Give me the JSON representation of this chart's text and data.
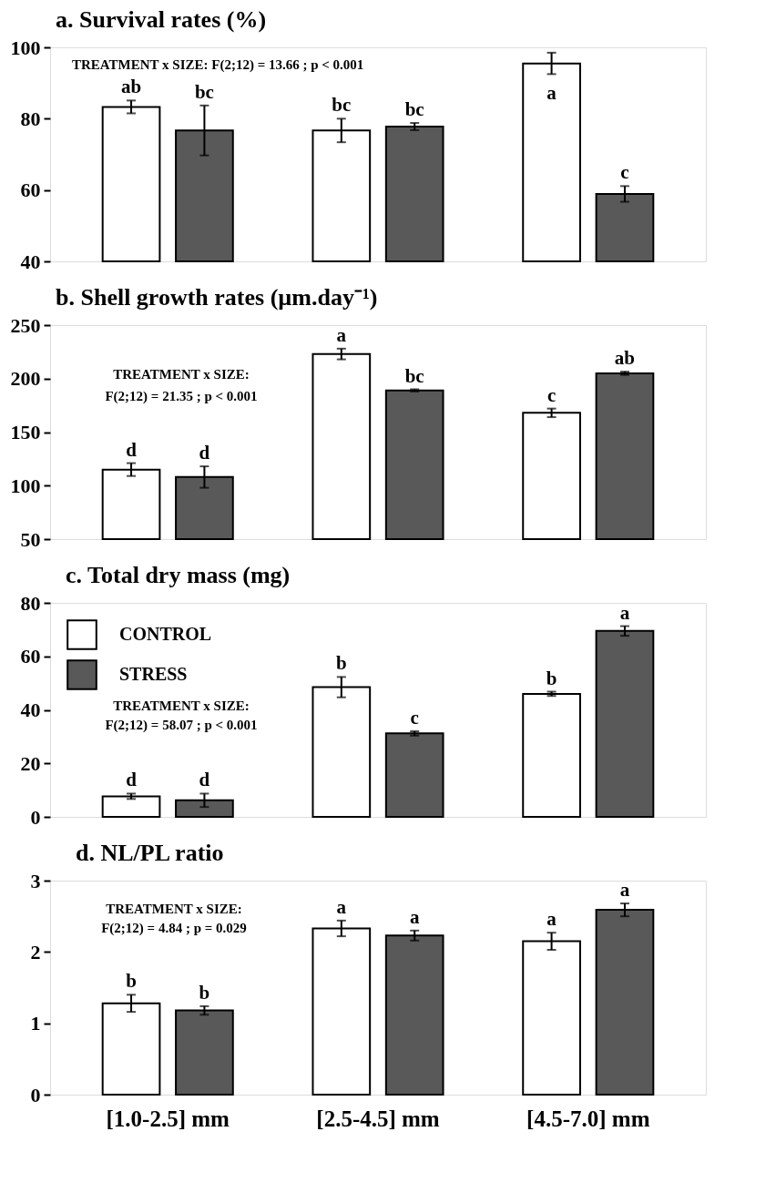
{
  "chart_data": [
    {
      "type": "bar",
      "title": "a.  Survival rates (%)",
      "categories": [
        null,
        null,
        null
      ],
      "ylim": [
        40,
        100
      ],
      "yticks": [
        40,
        60,
        80,
        100
      ],
      "grid": false,
      "legend": false,
      "tick_labels": "y",
      "annotations": [
        "TREATMENT  x  SIZE:  F(2;12) = 13.66 ;  p < 0.001"
      ],
      "series": [
        {
          "color": "#ffffff",
          "values": [
            83.3,
            76.7,
            95.5
          ],
          "errors": [
            1.8,
            3.3,
            3.0
          ],
          "value_labels": [
            "ab",
            "bc",
            "a"
          ]
        },
        {
          "color": "#595959",
          "values": [
            76.7,
            77.8,
            58.9
          ],
          "errors": [
            7.0,
            1.0,
            2.2
          ],
          "value_labels": [
            "bc",
            "bc",
            "c"
          ]
        }
      ]
    },
    {
      "type": "bar",
      "title": "b.  Shell growth rates (µm.day⁻¹)",
      "categories": [
        null,
        null,
        null
      ],
      "ylim": [
        50,
        250
      ],
      "yticks": [
        50,
        100,
        150,
        200,
        250
      ],
      "grid": false,
      "legend": false,
      "tick_labels": "y",
      "annotations": [
        "TREATMENT  x  SIZE:",
        "F(2;12) = 21.35 ;  p < 0.001"
      ],
      "series": [
        {
          "color": "#ffffff",
          "values": [
            115,
            223,
            168
          ],
          "errors": [
            6,
            5,
            4
          ],
          "value_labels": [
            "d",
            "a",
            "c"
          ]
        },
        {
          "color": "#595959",
          "values": [
            108,
            189,
            205
          ],
          "errors": [
            10,
            1,
            1.5
          ],
          "value_labels": [
            "d",
            "bc",
            "ab"
          ]
        }
      ]
    },
    {
      "type": "bar",
      "title": "c.  Total dry mass (mg)",
      "categories": [
        null,
        null,
        null
      ],
      "ylim": [
        0,
        80
      ],
      "yticks": [
        0,
        20,
        40,
        60,
        80
      ],
      "grid": false,
      "legend": "top left",
      "tick_labels": "y",
      "annotations": [
        "TREATMENT  x  SIZE:",
        "F(2;12) = 58.07 ;  p < 0.001"
      ],
      "series": [
        {
          "name": "CONTROL",
          "color": "#ffffff",
          "values": [
            7.7,
            48.5,
            46.0
          ],
          "errors": [
            1.0,
            3.8,
            0.8
          ],
          "value_labels": [
            "d",
            "b",
            "b"
          ]
        },
        {
          "name": "STRESS",
          "color": "#595959",
          "values": [
            6.2,
            31.2,
            69.5
          ],
          "errors": [
            2.5,
            0.8,
            1.8
          ],
          "value_labels": [
            "d",
            "c",
            "a"
          ]
        }
      ]
    },
    {
      "type": "bar",
      "title": "d.  NL/PL ratio",
      "categories": [
        "[1.0-2.5] mm",
        "[2.5-4.5] mm",
        "[4.5-7.0] mm"
      ],
      "ylim": [
        0,
        3
      ],
      "yticks": [
        0,
        1,
        2,
        3
      ],
      "grid": false,
      "legend": false,
      "annotations": [
        "TREATMENT  x  SIZE:",
        "F(2;12) = 4.84 ;  p = 0.029"
      ],
      "series": [
        {
          "color": "#ffffff",
          "values": [
            1.28,
            2.33,
            2.15
          ],
          "errors": [
            0.12,
            0.11,
            0.12
          ],
          "value_labels": [
            "b",
            "a",
            "a"
          ]
        },
        {
          "color": "#595959",
          "values": [
            1.18,
            2.23,
            2.59
          ],
          "errors": [
            0.06,
            0.07,
            0.09
          ],
          "value_labels": [
            "b",
            "a",
            "a"
          ]
        }
      ]
    }
  ]
}
